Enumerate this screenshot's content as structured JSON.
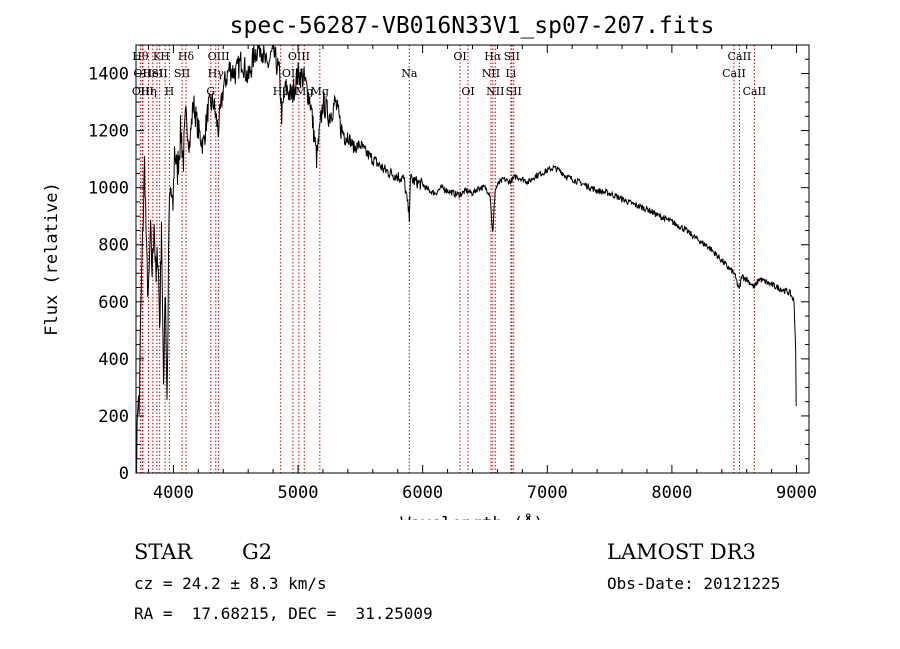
{
  "chart_data": {
    "type": "line",
    "title": "spec-56287-VB016N33V1_sp07-207.fits",
    "xlabel": "Wavelength (Å)",
    "ylabel": "Flux (relative)",
    "xlim": [
      3700,
      9100
    ],
    "ylim": [
      0,
      1500
    ],
    "xticks": [
      4000,
      5000,
      6000,
      7000,
      8000,
      9000
    ],
    "yticks": [
      0,
      200,
      400,
      600,
      800,
      1000,
      1200,
      1400
    ],
    "grid": false,
    "line_color": "#000000",
    "marker_color": "#cc0000",
    "spectrum": {
      "x": [
        3705,
        3715,
        3725,
        3740,
        3755,
        3770,
        3785,
        3800,
        3815,
        3830,
        3845,
        3860,
        3875,
        3890,
        3905,
        3920,
        3935,
        3950,
        3965,
        3980,
        3995,
        4010,
        4030,
        4060,
        4080,
        4100,
        4130,
        4160,
        4200,
        4240,
        4280,
        4320,
        4360,
        4400,
        4450,
        4500,
        4550,
        4600,
        4650,
        4700,
        4750,
        4800,
        4850,
        4870,
        4900,
        4950,
        5000,
        5050,
        5100,
        5150,
        5180,
        5200,
        5250,
        5300,
        5350,
        5400,
        5450,
        5500,
        5550,
        5600,
        5650,
        5700,
        5750,
        5800,
        5850,
        5893,
        5900,
        5950,
        6000,
        6050,
        6100,
        6150,
        6200,
        6250,
        6300,
        6350,
        6400,
        6450,
        6500,
        6540,
        6563,
        6580,
        6600,
        6650,
        6700,
        6750,
        6800,
        6850,
        6900,
        6950,
        7000,
        7050,
        7100,
        7150,
        7200,
        7300,
        7400,
        7500,
        7600,
        7700,
        7800,
        7900,
        8000,
        8100,
        8200,
        8300,
        8400,
        8450,
        8500,
        8542,
        8560,
        8600,
        8662,
        8700,
        8750,
        8800,
        8850,
        8900,
        8950,
        8980,
        8995,
        9000
      ],
      "y": [
        0,
        300,
        200,
        600,
        850,
        1100,
        750,
        600,
        850,
        700,
        900,
        650,
        800,
        500,
        900,
        280,
        700,
        220,
        900,
        1000,
        900,
        1150,
        1050,
        1200,
        1100,
        1250,
        1150,
        1300,
        1200,
        1150,
        1280,
        1300,
        1200,
        1350,
        1420,
        1400,
        1450,
        1380,
        1470,
        1500,
        1420,
        1480,
        1400,
        1250,
        1350,
        1320,
        1400,
        1380,
        1300,
        1100,
        1220,
        1300,
        1250,
        1300,
        1200,
        1180,
        1140,
        1150,
        1120,
        1100,
        1080,
        1060,
        1050,
        1040,
        1030,
        900,
        1030,
        1020,
        1010,
        990,
        980,
        1000,
        990,
        980,
        975,
        990,
        980,
        1000,
        1000,
        980,
        830,
        990,
        1010,
        1030,
        1020,
        1040,
        1030,
        1020,
        1040,
        1050,
        1060,
        1070,
        1060,
        1040,
        1030,
        1010,
        990,
        980,
        960,
        940,
        925,
        900,
        880,
        855,
        820,
        790,
        745,
        720,
        700,
        640,
        690,
        680,
        650,
        680,
        670,
        660,
        650,
        640,
        630,
        600,
        400,
        0
      ]
    },
    "lines": [
      {
        "wl": 3735,
        "row": 0,
        "label": "Hθ"
      },
      {
        "wl": 3750,
        "row": 1,
        "label": "OII"
      },
      {
        "wl": 3755,
        "row": 2,
        "label": "OIII"
      },
      {
        "wl": 3800,
        "row": 2,
        "label": "Hη"
      },
      {
        "wl": 3835,
        "row": 1,
        "label": "HeI"
      },
      {
        "wl": 3868,
        "row": 0,
        "label": "K"
      },
      {
        "wl": 3890,
        "row": 1,
        "label": "SII"
      },
      {
        "wl": 3933,
        "row": 0,
        "label": "H"
      },
      {
        "wl": 3968,
        "row": 2,
        "label": "H"
      },
      {
        "wl": 4101,
        "row": 0,
        "label": "Hδ"
      },
      {
        "wl": 4070,
        "row": 1,
        "label": "SII"
      },
      {
        "wl": 4300,
        "row": 2,
        "label": "G"
      },
      {
        "wl": 4340,
        "row": 1,
        "label": "Hγ"
      },
      {
        "wl": 4363,
        "row": 0,
        "label": "OIII"
      },
      {
        "wl": 4861,
        "row": 2,
        "label": "Hβ"
      },
      {
        "wl": 4959,
        "row": 1,
        "label": "OIII"
      },
      {
        "wl": 5007,
        "row": 0,
        "label": "OIII"
      },
      {
        "wl": 5050,
        "row": 2,
        "label": "Mg"
      },
      {
        "wl": 5175,
        "row": 2,
        "label": "Mg"
      },
      {
        "wl": 5893,
        "row": 1,
        "label": "Na"
      },
      {
        "wl": 6300,
        "row": 0,
        "label": "OI"
      },
      {
        "wl": 6364,
        "row": 2,
        "label": "OI"
      },
      {
        "wl": 6548,
        "row": 1,
        "label": "NII"
      },
      {
        "wl": 6563,
        "row": 0,
        "label": "Hα"
      },
      {
        "wl": 6583,
        "row": 2,
        "label": "NII"
      },
      {
        "wl": 6708,
        "row": 1,
        "label": "Li"
      },
      {
        "wl": 6716,
        "row": 0,
        "label": "SII"
      },
      {
        "wl": 6731,
        "row": 2,
        "label": "SII"
      },
      {
        "wl": 8498,
        "row": 1,
        "label": "CaII"
      },
      {
        "wl": 8542,
        "row": 0,
        "label": "CaII"
      },
      {
        "wl": 8662,
        "row": 2,
        "label": "CaII"
      }
    ]
  },
  "info": {
    "object_class": "STAR",
    "subclass": "G2",
    "survey": "LAMOST DR3",
    "cz": "cz = 24.2 ± 8.3 km/s",
    "obs_date": "Obs-Date: 20121225",
    "coords": "RA =  17.68215, DEC =  31.25009"
  }
}
